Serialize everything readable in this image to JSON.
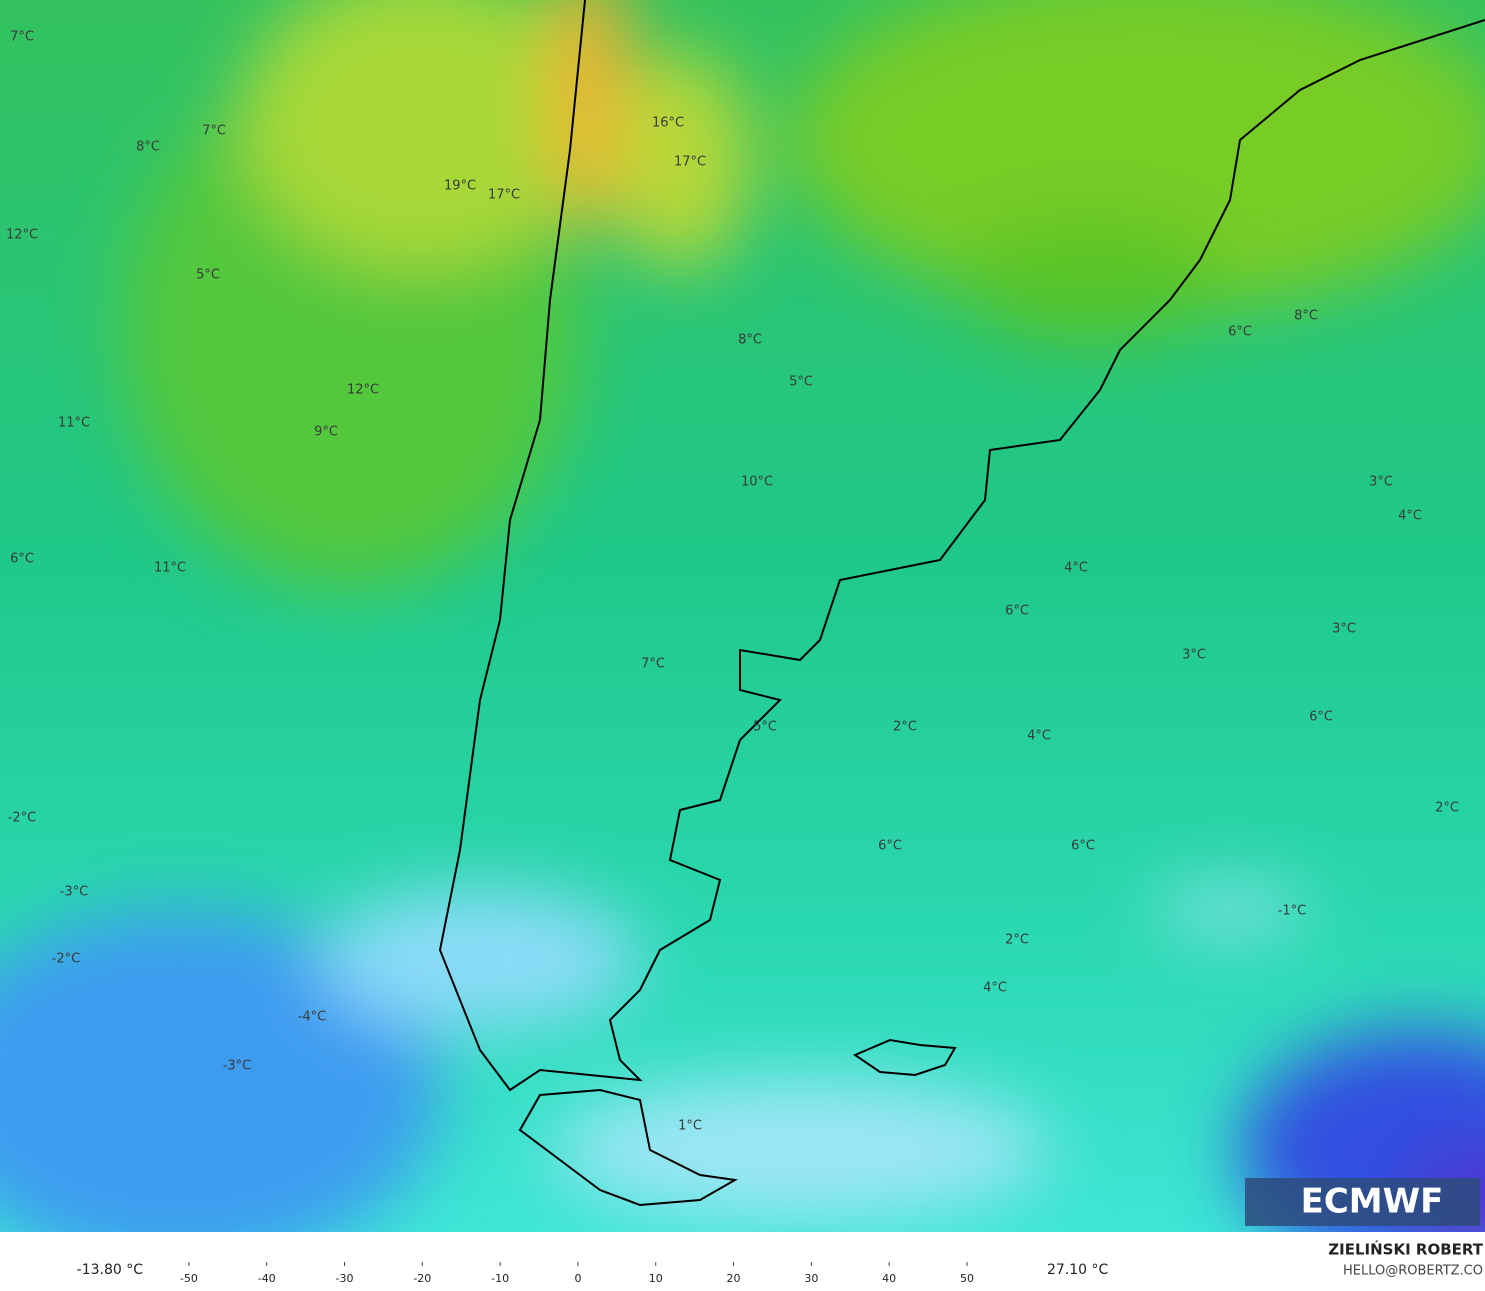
{
  "map": {
    "labels": [
      "7°C",
      "7°C",
      "8°C",
      "16°C",
      "17°C",
      "19°C",
      "17°C",
      "12°C",
      "5°C",
      "8°C",
      "6°C",
      "8°C",
      "5°C",
      "12°C",
      "11°C",
      "9°C",
      "10°C",
      "3°C",
      "4°C",
      "6°C",
      "11°C",
      "4°C",
      "6°C",
      "3°C",
      "3°C",
      "7°C",
      "5°C",
      "2°C",
      "4°C",
      "6°C",
      "2°C",
      "-2°C",
      "6°C",
      "6°C",
      "-3°C",
      "-1°C",
      "-2°C",
      "2°C",
      "4°C",
      "-4°C",
      "-3°C",
      "1°C"
    ]
  },
  "colorbar": {
    "min_label": "-13.80 °C",
    "max_label": "27.10 °C",
    "lim": [
      -55,
      59
    ],
    "ticks": [
      -50,
      -40,
      -30,
      -20,
      -10,
      0,
      10,
      20,
      30,
      40,
      50
    ]
  },
  "credits": {
    "author": "ZIELIŃSKI ROBERT",
    "email": "HELLO@ROBERTZ.CO"
  },
  "logo": "ECMWF"
}
